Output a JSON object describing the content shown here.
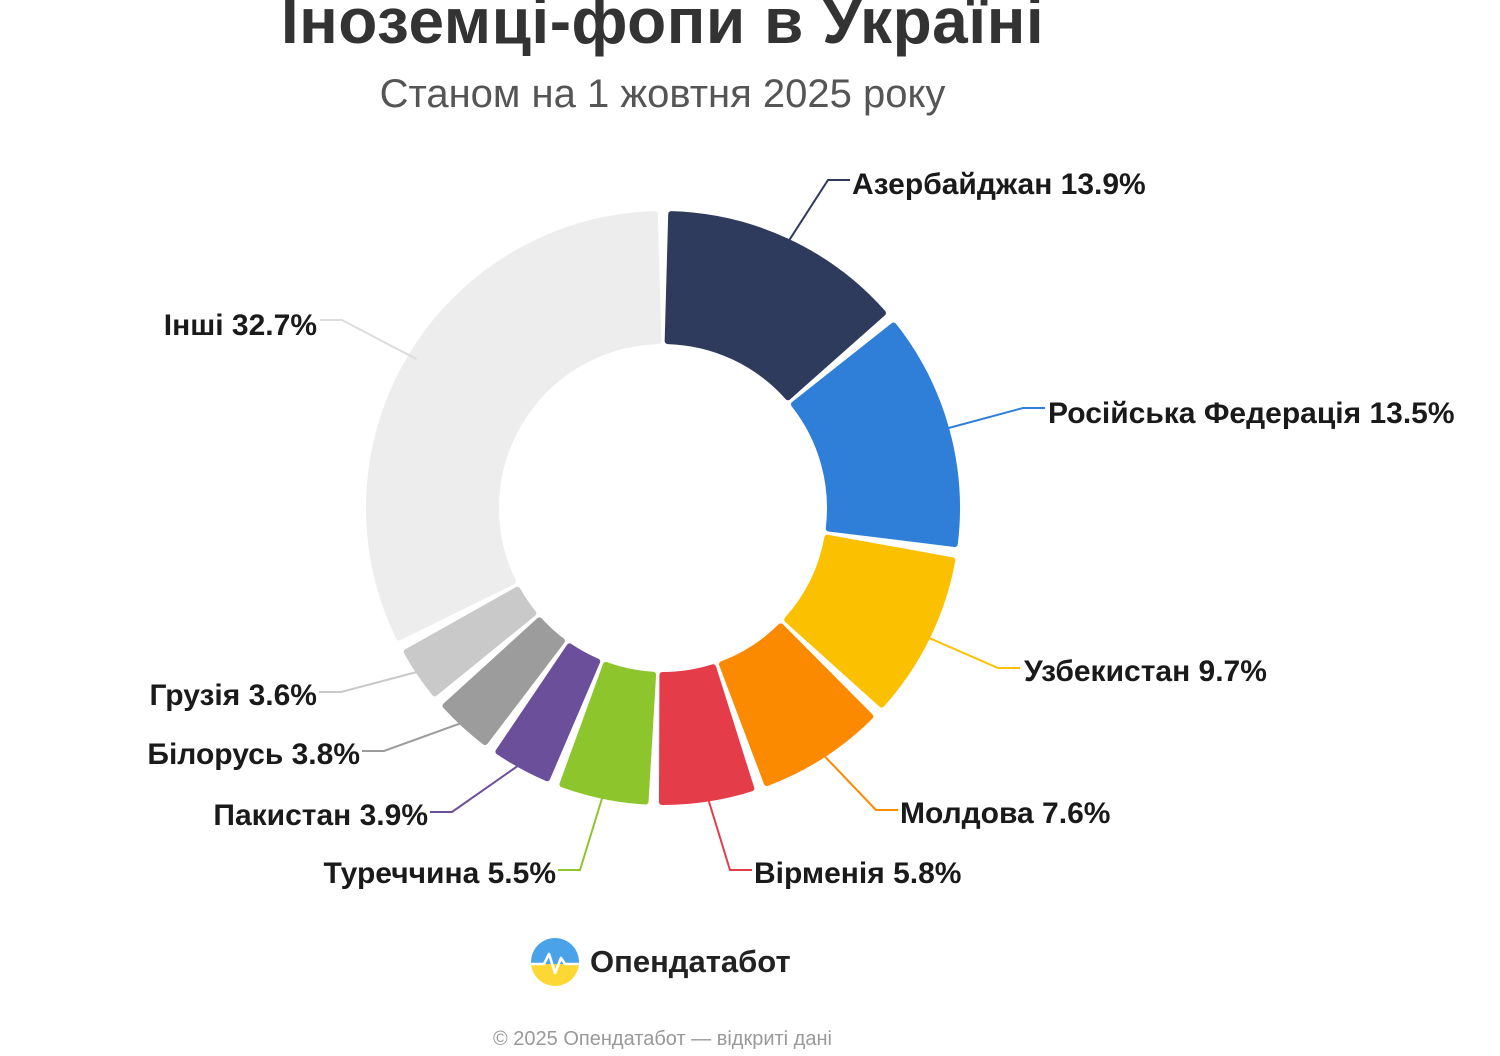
{
  "header": {
    "title": "Іноземці-фопи в Україні",
    "subtitle": "Станом на 1 жовтня 2025 року"
  },
  "chart_data": {
    "type": "pie",
    "variant": "donut",
    "title": "Іноземці-фопи в Україні",
    "subtitle": "Станом на 1 жовтня 2025 року",
    "unit": "%",
    "segments": [
      {
        "label": "Азербайджан",
        "value": 13.9,
        "text": "Азербайджан 13.9%",
        "color": "#2e3b5c"
      },
      {
        "label": "Російська Федерація",
        "value": 13.5,
        "text": "Російська Федерація 13.5%",
        "color": "#2f7fd9"
      },
      {
        "label": "Узбекистан",
        "value": 9.7,
        "text": "Узбекистан 9.7%",
        "color": "#fbc000"
      },
      {
        "label": "Молдова",
        "value": 7.6,
        "text": "Молдова 7.6%",
        "color": "#fb8a00"
      },
      {
        "label": "Вірменія",
        "value": 5.8,
        "text": "Вірменія 5.8%",
        "color": "#e43c49"
      },
      {
        "label": "Туреччина",
        "value": 5.5,
        "text": "Туреччина 5.5%",
        "color": "#8cc62c"
      },
      {
        "label": "Пакистан",
        "value": 3.9,
        "text": "Пакистан 3.9%",
        "color": "#6b4f9a"
      },
      {
        "label": "Білорусь",
        "value": 3.8,
        "text": "Білорусь 3.8%",
        "color": "#9c9c9c"
      },
      {
        "label": "Грузія",
        "value": 3.6,
        "text": "Грузія 3.6%",
        "color": "#c9c9c9"
      },
      {
        "label": "Інші",
        "value": 32.7,
        "text": "Інші 32.7%",
        "color": "#ededed"
      }
    ]
  },
  "brand": {
    "name": "Опендатабот",
    "logo_icon": "opendatabot-logo-icon",
    "colors": {
      "blue": "#4aa3e8",
      "yellow": "#fdd835"
    }
  },
  "footer": {
    "text": "© 2025 Опендатабот — відкриті дані"
  }
}
